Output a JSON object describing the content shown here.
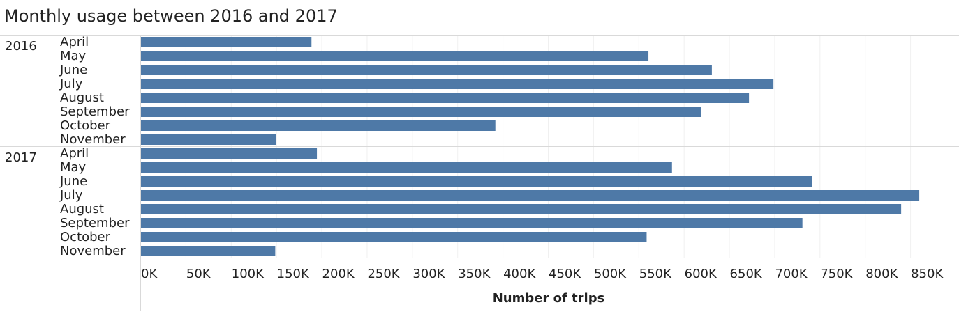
{
  "chart_data": {
    "type": "bar",
    "orientation": "horizontal",
    "title": "Monthly usage between 2016 and 2017",
    "xlabel": "Number of trips",
    "ylabel": "",
    "xlim": [
      0,
      900000
    ],
    "grid": true,
    "bar_color": "#4e79a7",
    "ticks": [
      {
        "value": 0,
        "label": "0K"
      },
      {
        "value": 50000,
        "label": "50K"
      },
      {
        "value": 100000,
        "label": "100K"
      },
      {
        "value": 150000,
        "label": "150K"
      },
      {
        "value": 200000,
        "label": "200K"
      },
      {
        "value": 250000,
        "label": "250K"
      },
      {
        "value": 300000,
        "label": "300K"
      },
      {
        "value": 350000,
        "label": "350K"
      },
      {
        "value": 400000,
        "label": "400K"
      },
      {
        "value": 450000,
        "label": "450K"
      },
      {
        "value": 500000,
        "label": "500K"
      },
      {
        "value": 550000,
        "label": "550K"
      },
      {
        "value": 600000,
        "label": "600K"
      },
      {
        "value": 650000,
        "label": "650K"
      },
      {
        "value": 700000,
        "label": "700K"
      },
      {
        "value": 750000,
        "label": "750K"
      },
      {
        "value": 800000,
        "label": "800K"
      },
      {
        "value": 850000,
        "label": "850K"
      }
    ],
    "groups": [
      {
        "year": "2016",
        "rows": [
          {
            "month": "April",
            "value": 189000
          },
          {
            "month": "May",
            "value": 561000
          },
          {
            "month": "June",
            "value": 631000
          },
          {
            "month": "July",
            "value": 699000
          },
          {
            "month": "August",
            "value": 672000
          },
          {
            "month": "September",
            "value": 619000
          },
          {
            "month": "October",
            "value": 392000
          },
          {
            "month": "November",
            "value": 150000
          }
        ]
      },
      {
        "year": "2017",
        "rows": [
          {
            "month": "April",
            "value": 195000
          },
          {
            "month": "May",
            "value": 587000
          },
          {
            "month": "June",
            "value": 742000
          },
          {
            "month": "July",
            "value": 860000
          },
          {
            "month": "August",
            "value": 840000
          },
          {
            "month": "September",
            "value": 731000
          },
          {
            "month": "October",
            "value": 559000
          },
          {
            "month": "November",
            "value": 149000
          }
        ]
      }
    ]
  }
}
